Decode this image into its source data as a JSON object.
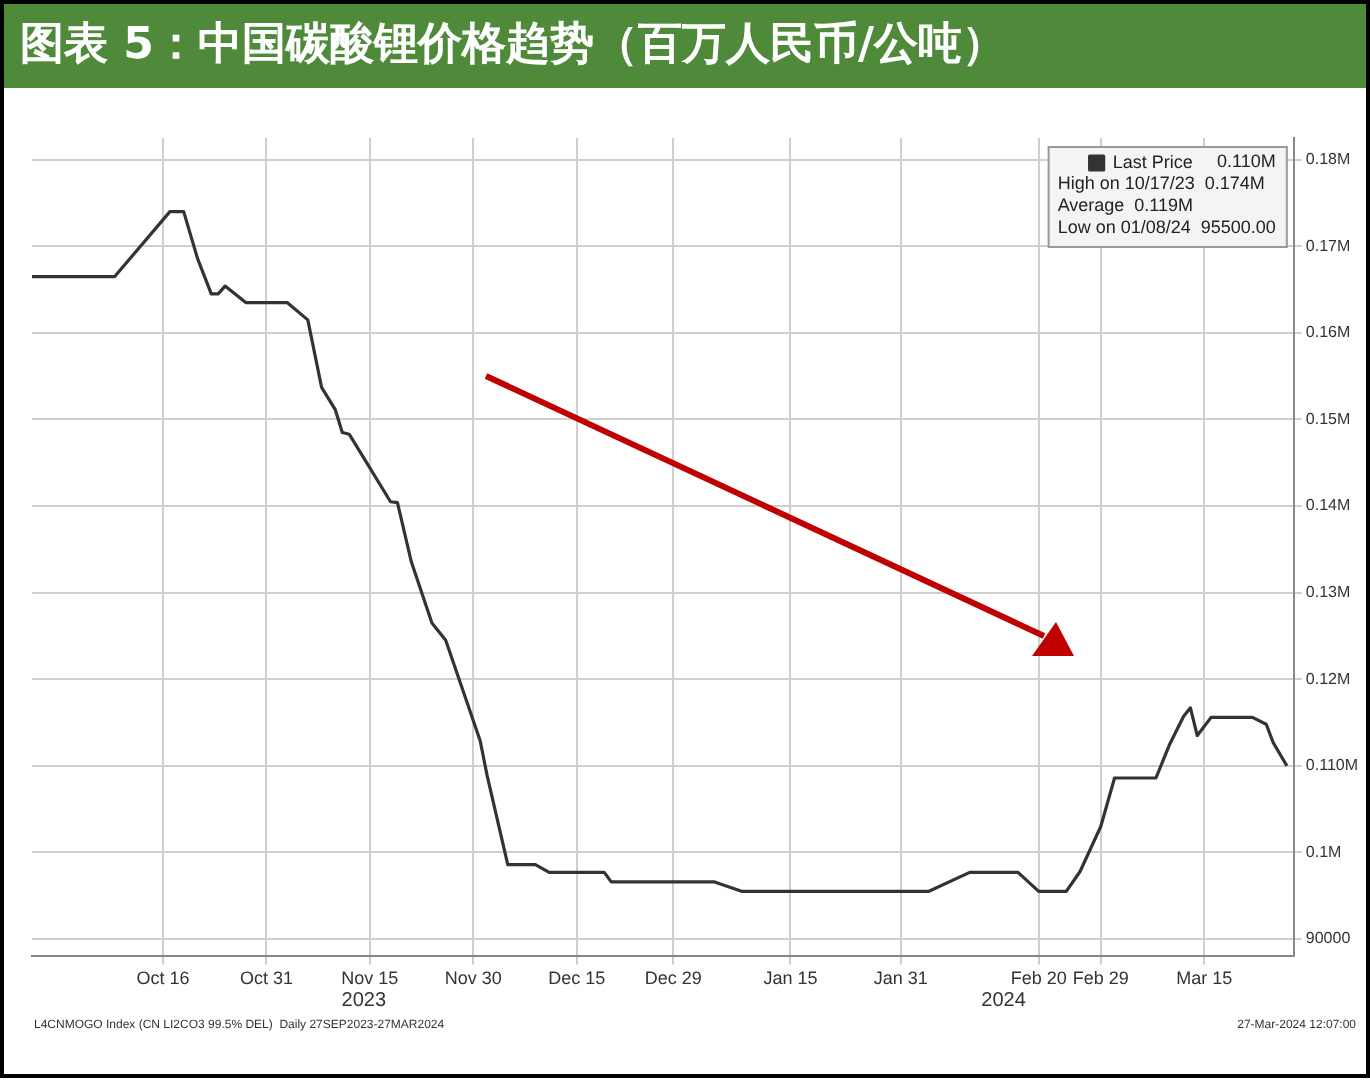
{
  "chart_data": {
    "type": "line",
    "title": "图表 5：中国碳酸锂价格趋势（百万人民币/公吨）",
    "x": [
      "2023-09-27",
      "2023-10-09",
      "2023-10-17",
      "2023-10-19",
      "2023-10-21",
      "2023-10-23",
      "2023-10-24",
      "2023-10-25",
      "2023-10-28",
      "2023-11-03",
      "2023-11-06",
      "2023-11-08",
      "2023-11-10",
      "2023-11-11",
      "2023-11-12",
      "2023-11-18",
      "2023-11-19",
      "2023-11-21",
      "2023-11-24",
      "2023-11-26",
      "2023-12-01",
      "2023-12-02",
      "2023-12-05",
      "2023-12-09",
      "2023-12-11",
      "2023-12-19",
      "2023-12-20",
      "2024-01-04",
      "2024-01-08",
      "2024-02-04",
      "2024-02-10",
      "2024-02-17",
      "2024-02-20",
      "2024-02-24",
      "2024-02-26",
      "2024-02-29",
      "2024-03-02",
      "2024-03-08",
      "2024-03-10",
      "2024-03-12",
      "2024-03-13",
      "2024-03-14",
      "2024-03-16",
      "2024-03-22",
      "2024-03-24",
      "2024-03-25",
      "2024-03-27"
    ],
    "series": [
      {
        "name": "Last Price",
        "color": "#333333",
        "values": [
          166500,
          166500,
          174000,
          174000,
          168600,
          164500,
          164500,
          165400,
          163500,
          163500,
          161500,
          153700,
          151100,
          148500,
          148300,
          140500,
          140400,
          133600,
          126500,
          124500,
          112900,
          108900,
          98600,
          98600,
          97700,
          97700,
          96600,
          96600,
          95500,
          95500,
          97700,
          97700,
          95500,
          95500,
          97800,
          103000,
          108600,
          108600,
          112500,
          115700,
          116700,
          113500,
          115600,
          115600,
          114800,
          112700,
          110000
        ]
      }
    ],
    "xlim": [
      "2023-09-27",
      "2024-03-28"
    ],
    "xticks": [
      {
        "value": "2023-10-16",
        "label": "Oct 16"
      },
      {
        "value": "2023-10-31",
        "label": "Oct 31"
      },
      {
        "value": "2023-11-15",
        "label": "Nov 15"
      },
      {
        "value": "2023-11-30",
        "label": "Nov 30"
      },
      {
        "value": "2023-12-15",
        "label": "Dec 15"
      },
      {
        "value": "2023-12-29",
        "label": "Dec 29"
      },
      {
        "value": "2024-01-15",
        "label": "Jan 15"
      },
      {
        "value": "2024-01-31",
        "label": "Jan 31"
      },
      {
        "value": "2024-02-20",
        "label": "Feb 20"
      },
      {
        "value": "2024-02-29",
        "label": "Feb 29"
      },
      {
        "value": "2024-03-15",
        "label": "Mar 15"
      }
    ],
    "ylim": [
      88000,
      182500
    ],
    "yticks": [
      90000,
      {
        "value": 100000,
        "label": "0.1M"
      },
      {
        "value": 110000,
        "label": "0.110M"
      },
      {
        "value": 120000,
        "label": "0.12M"
      },
      {
        "value": 130000,
        "label": "0.13M"
      },
      {
        "value": 140000,
        "label": "0.14M"
      },
      {
        "value": 150000,
        "label": "0.15M"
      },
      {
        "value": 160000,
        "label": "0.16M"
      },
      {
        "value": 170000,
        "label": "0.17M"
      },
      {
        "value": 180000,
        "label": "0.18M"
      }
    ],
    "grid": true,
    "legend": "top right",
    "marker": "none",
    "line_style": "solid",
    "annotations": [
      "0.110M",
      "High on 10/17/23  0.174M",
      "Average  0.119M",
      "Low on 01/08/24  95500.00",
      "2023",
      "2024",
      "L4CNMOGO Index (CN LI2CO3 99.5% DEL)  Daily 27SEP2023-27MAR2024",
      "27-Mar-2024 12:07:00"
    ]
  }
}
